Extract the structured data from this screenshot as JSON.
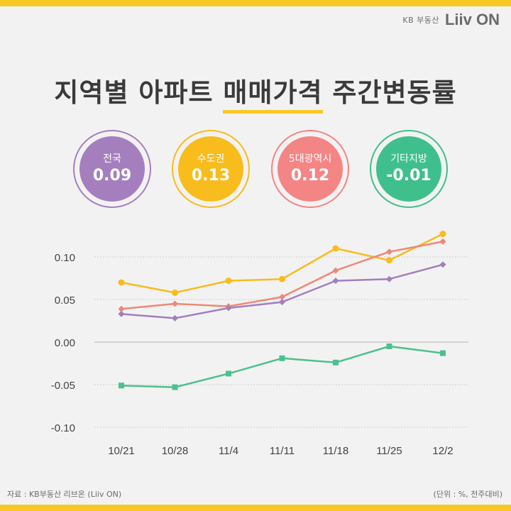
{
  "brand": {
    "text": "KB 부동산",
    "logo": "Liiv ON"
  },
  "title": {
    "part1": "지역별 아파트 ",
    "highlight": "매매가격",
    "part2": " 주간변동률"
  },
  "badges": [
    {
      "label": "전국",
      "value": "0.09",
      "color": "#a57fbd"
    },
    {
      "label": "수도권",
      "value": "0.13",
      "color": "#f8bc1c"
    },
    {
      "label": "5대광역시",
      "value": "0.12",
      "color": "#f48585"
    },
    {
      "label": "기타지방",
      "value": "-0.01",
      "color": "#3fbf8c"
    }
  ],
  "chart_data": {
    "type": "line",
    "categories": [
      "10/21",
      "10/28",
      "11/4",
      "11/11",
      "11/18",
      "11/25",
      "12/2"
    ],
    "y_ticks": [
      "0.10",
      "0.05",
      "0.00",
      "-0.05",
      "-0.10"
    ],
    "ylim": [
      -0.1,
      0.1
    ],
    "grid": true,
    "series": [
      {
        "name": "수도권",
        "color": "#f8bc1c",
        "marker": "circle",
        "values": [
          0.07,
          0.058,
          0.072,
          0.074,
          0.11,
          0.096,
          0.127
        ]
      },
      {
        "name": "5대광역시",
        "color": "#ee8876",
        "marker": "diamond",
        "values": [
          0.039,
          0.045,
          0.042,
          0.053,
          0.084,
          0.106,
          0.118
        ]
      },
      {
        "name": "전국",
        "color": "#a17fbf",
        "marker": "diamond",
        "values": [
          0.033,
          0.028,
          0.04,
          0.047,
          0.072,
          0.074,
          0.091
        ]
      },
      {
        "name": "기타지방",
        "color": "#4cc190",
        "marker": "square",
        "values": [
          -0.051,
          -0.053,
          -0.037,
          -0.019,
          -0.024,
          -0.005,
          -0.013
        ]
      }
    ]
  },
  "footer": {
    "source": "자료 : KB부동산 리브온 (Liiv ON)",
    "unit": "(단위 : %, 전주대비)"
  }
}
